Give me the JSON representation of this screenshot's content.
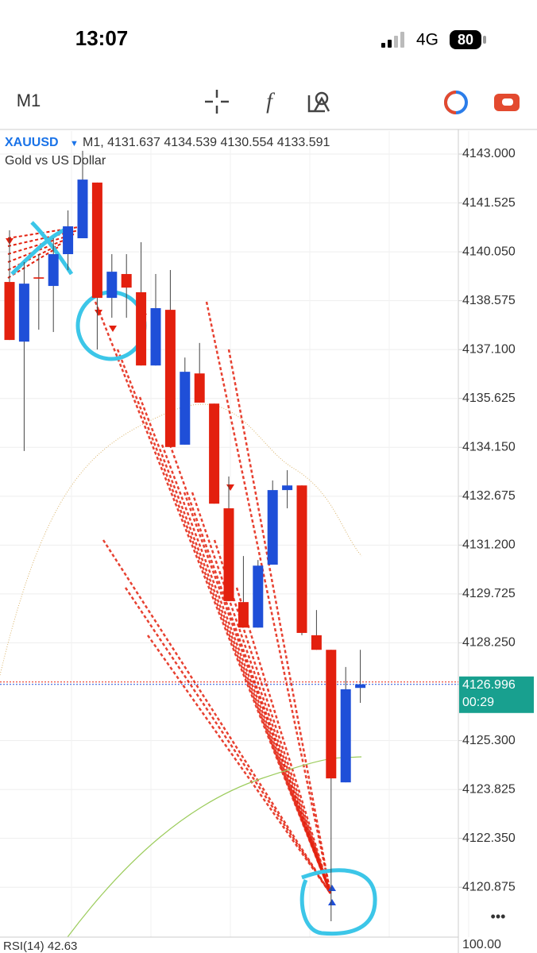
{
  "status_bar": {
    "time": "13:07",
    "network": "4G",
    "battery": "80"
  },
  "toolbar": {
    "timeframe": "M1"
  },
  "header": {
    "symbol": "XAUUSD",
    "timeframe": "M1,",
    "ohlc": [
      4131.637,
      4134.539,
      4130.554,
      4133.591
    ],
    "description": "Gold vs US Dollar"
  },
  "chart_data": {
    "type": "candlestick",
    "up_color": "#1f4fd8",
    "down_color": "#e3200e",
    "open": [
      4139.14,
      4137.34,
      4139.28,
      4139.02,
      4139.98,
      4140.46,
      4142.14,
      4138.66,
      4139.38,
      4138.83,
      4136.62,
      4138.3,
      4134.23,
      4136.38,
      4135.47,
      4132.31,
      4129.48,
      4128.71,
      4130.61,
      4132.86,
      4133.0,
      4128.48,
      4128.04,
      4124.04,
      4126.89
    ],
    "high": [
      4140.7,
      4139.74,
      4139.98,
      4140.46,
      4141.3,
      4143.1,
      4142.14,
      4139.98,
      4139.98,
      4140.34,
      4139.38,
      4139.5,
      4136.86,
      4137.3,
      4135.47,
      4133.27,
      4130.87,
      4130.75,
      4133.15,
      4133.46,
      4133.0,
      4129.24,
      4128.04,
      4127.52,
      4128.04
    ],
    "low": [
      4137.39,
      4134.04,
      4137.7,
      4137.63,
      4139.5,
      4140.46,
      4137.1,
      4138.06,
      4138.06,
      4136.62,
      4136.62,
      4134.16,
      4134.23,
      4135.5,
      4132.45,
      4129.51,
      4128.71,
      4128.71,
      4130.61,
      4132.31,
      4128.48,
      4128.04,
      4119.85,
      4124.04,
      4126.44
    ],
    "close": [
      4137.39,
      4139.09,
      4139.24,
      4139.98,
      4140.82,
      4142.23,
      4138.66,
      4139.45,
      4138.97,
      4136.62,
      4138.35,
      4134.16,
      4136.43,
      4135.5,
      4132.45,
      4129.51,
      4128.71,
      4130.58,
      4132.86,
      4133.0,
      4128.55,
      4128.04,
      4124.16,
      4126.85,
      4127.0
    ],
    "ylim": [
      4119.37,
      4143.695
    ],
    "yticks": [
      {
        "value": 4143,
        "label": "4143.000"
      },
      {
        "value": 4141.525,
        "label": "4141.525"
      },
      {
        "value": 4140.05,
        "label": "4140.050"
      },
      {
        "value": 4138.575,
        "label": "4138.575"
      },
      {
        "value": 4137.1,
        "label": "4137.100"
      },
      {
        "value": 4135.625,
        "label": "4135.625"
      },
      {
        "value": 4134.15,
        "label": "4134.150"
      },
      {
        "value": 4132.675,
        "label": "4132.675"
      },
      {
        "value": 4131.2,
        "label": "4131.200"
      },
      {
        "value": 4129.725,
        "label": "4129.725"
      },
      {
        "value": 4128.25,
        "label": "4128.250"
      },
      {
        "value": 4125.3,
        "label": "4125.300"
      },
      {
        "value": 4123.825,
        "label": "4123.825"
      },
      {
        "value": 4122.35,
        "label": "4122.350"
      },
      {
        "value": 4120.875,
        "label": "4120.875"
      }
    ],
    "last_price": 4126.996,
    "countdown": "00:29"
  },
  "rsi": {
    "label": "RSI(14)",
    "value": 42.63,
    "axis_top": "100.00"
  },
  "more": "•••"
}
